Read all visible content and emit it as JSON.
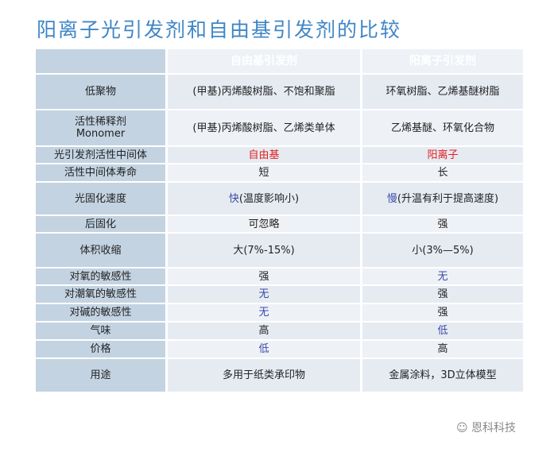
{
  "title": "阳离子光引发剂和自由基引发剂的比较",
  "headers": [
    "",
    "自由基引发剂",
    "阳离子引发剂"
  ],
  "rows": [
    {
      "label": "低聚物",
      "c1": "(甲基)丙烯酸树脂、不饱和聚脂",
      "c2": "环氧树脂、乙烯基醚树脂"
    },
    {
      "label": "活性稀释剂",
      "label2": "Monomer",
      "c1": "(甲基)丙烯酸树脂、乙烯类单体",
      "c2": "乙烯基醚、环氧化合物"
    },
    {
      "label": "光引发剂活性中间体",
      "c1": "自由基",
      "c2": "阳离子"
    },
    {
      "label": "活性中间体寿命",
      "c1": "短",
      "c2": "长"
    },
    {
      "label": "光固化速度",
      "c1a": "快",
      "c1": "(温度影响小)",
      "c2a": "慢",
      "c2": "(升温有利于提高速度)"
    },
    {
      "label": "后固化",
      "c1": "可忽略",
      "c2": "强"
    },
    {
      "label": "体积收缩",
      "c1": "大(7%-15%)",
      "c2": "小(3%—5%)"
    },
    {
      "label": "对氧的敏感性",
      "c1": "强",
      "c2": "无"
    },
    {
      "label": "对潮氧的敏感性",
      "c1": "无",
      "c2": "强"
    },
    {
      "label": "对碱的敏感性",
      "c1": "无",
      "c2": "强"
    },
    {
      "label": "气味",
      "c1": "高",
      "c2": "低"
    },
    {
      "label": "价格",
      "c1": "低",
      "c2": "高"
    },
    {
      "label": "用途",
      "c1": "多用于纸类承印物",
      "c2": "金属涂料，3D立体模型"
    }
  ],
  "watermark": "恩科科技",
  "colors": {
    "title": "#3f86c6",
    "header": "#b9ccdd",
    "highlight_red": "#e02020",
    "highlight_blue": "#3a4aa8"
  }
}
